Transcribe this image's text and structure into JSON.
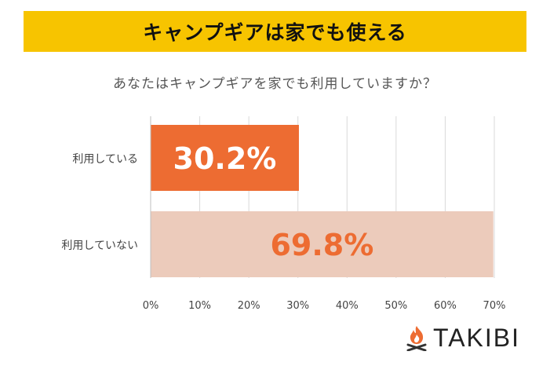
{
  "header": {
    "title": "キャンプギアは家でも使える"
  },
  "chart_data": {
    "type": "bar",
    "orientation": "horizontal",
    "title": "あなたはキャンプギアを家でも利用していますか？",
    "categories": [
      "利用している",
      "利用していない"
    ],
    "values": [
      30.2,
      69.8
    ],
    "value_labels": [
      "30.2%",
      "69.8%"
    ],
    "bar_colors": [
      "#ed6c32",
      "#eccbbb"
    ],
    "label_colors": [
      "#ffffff",
      "#ed6c32"
    ],
    "xlim": [
      0,
      70
    ],
    "xticks": [
      "0%",
      "10%",
      "20%",
      "30%",
      "40%",
      "50%",
      "60%",
      "70%"
    ],
    "grid": true,
    "legend": "none"
  },
  "brand": {
    "name": "TAKIBI",
    "icon": "flame-logo-icon",
    "color": "#ed6c32"
  }
}
